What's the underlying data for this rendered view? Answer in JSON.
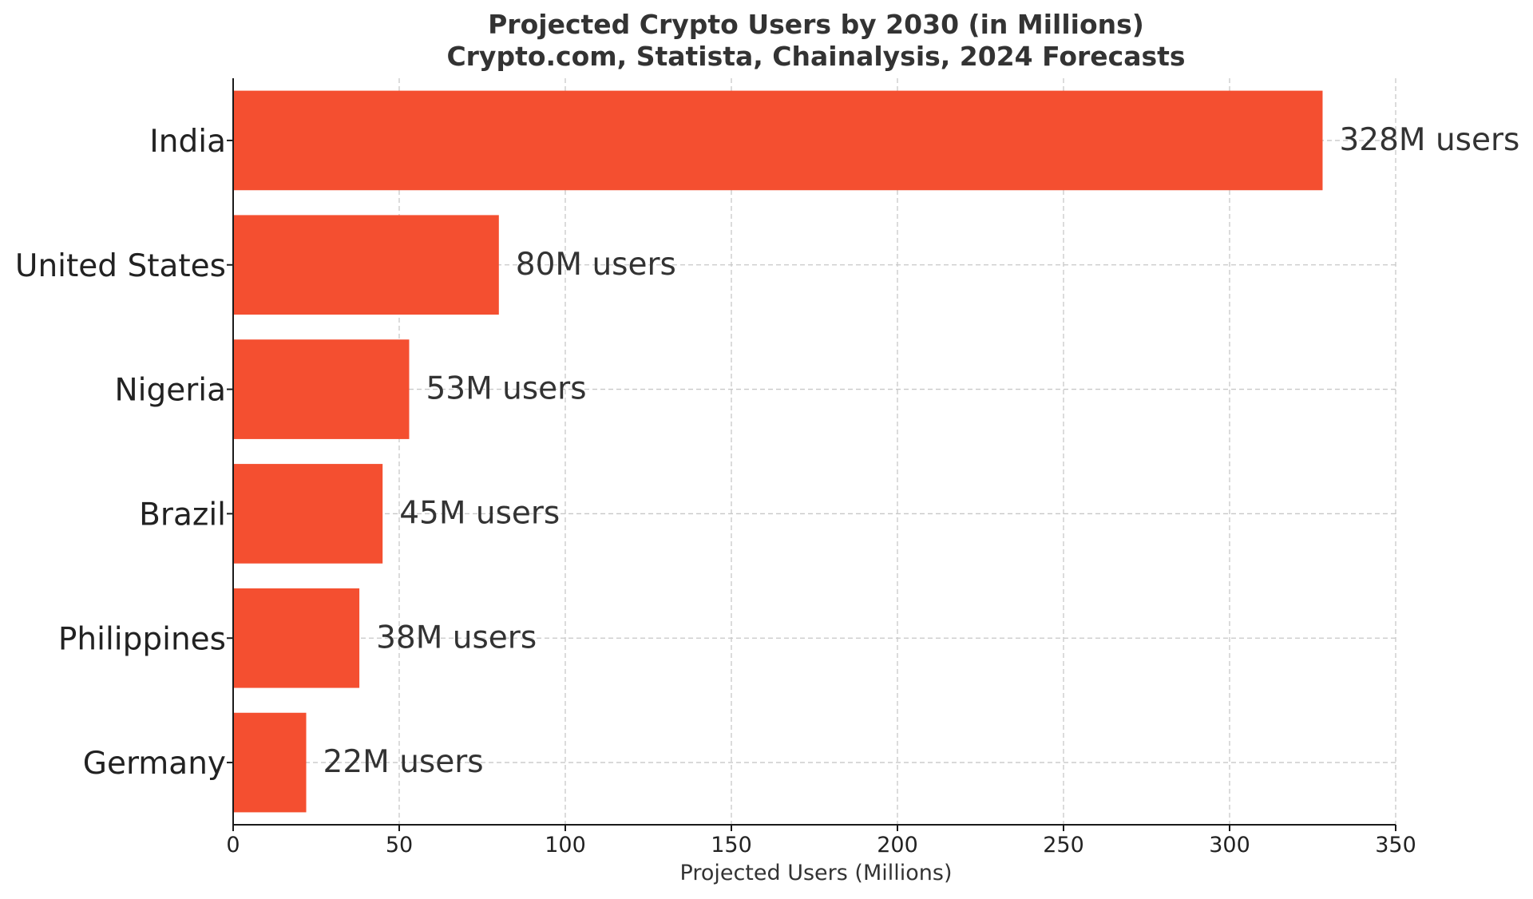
{
  "chart_data": {
    "type": "bar",
    "orientation": "horizontal",
    "title": "Projected Crypto Users by 2030 (in Millions)",
    "subtitle": "Crypto.com, Statista, Chainalysis, 2024 Forecasts",
    "categories": [
      "India",
      "United States",
      "Nigeria",
      "Brazil",
      "Philippines",
      "Germany"
    ],
    "values": [
      328,
      80,
      53,
      45,
      38,
      22
    ],
    "data_labels": [
      "328M users",
      "80M users",
      "53M users",
      "45M users",
      "38M users",
      "22M users"
    ],
    "xlabel": "Projected Users (Millions)",
    "ylabel": "",
    "xlim": [
      0,
      350
    ],
    "xticks": [
      0,
      50,
      100,
      150,
      200,
      250,
      300,
      350
    ],
    "grid": true,
    "bar_color": "#f44f30"
  }
}
